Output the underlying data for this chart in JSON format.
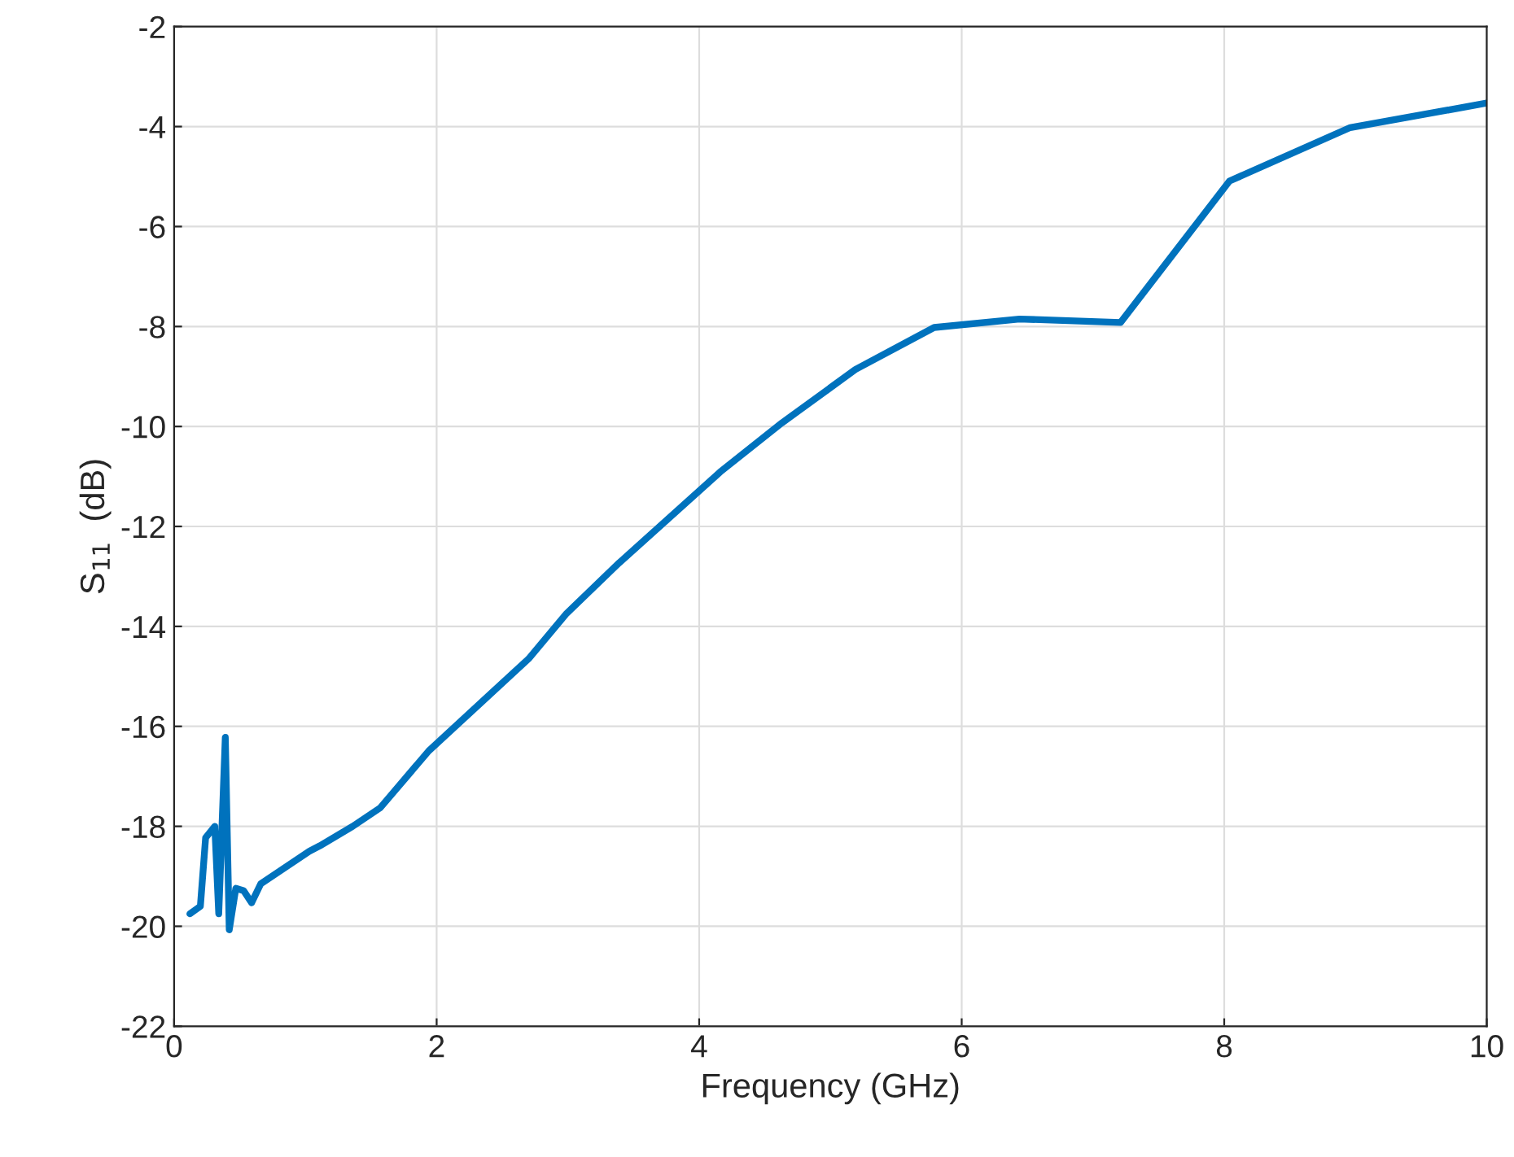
{
  "chart_data": {
    "type": "line",
    "xlabel": "Frequency (GHz)",
    "ylabel": "S$_{11}$  (dB)",
    "series": [
      {
        "color": "#0072bd",
        "x": [
          0.12,
          0.2,
          0.24,
          0.31,
          0.34,
          0.39,
          0.42,
          0.47,
          0.53,
          0.59,
          0.66,
          1.03,
          1.11,
          1.36,
          1.57,
          1.94,
          2.39,
          2.7,
          2.99,
          3.39,
          4.16,
          4.63,
          5.19,
          5.79,
          6.44,
          7.21,
          8.04,
          8.96,
          10
        ],
        "values": [
          -19.75,
          -19.6,
          -18.23,
          -18.0,
          -19.75,
          -16.22,
          -20.07,
          -19.24,
          -19.29,
          -19.53,
          -19.15,
          -18.5,
          -18.39,
          -18.0,
          -17.63,
          -16.49,
          -15.4,
          -14.65,
          -13.74,
          -12.73,
          -10.91,
          -9.93,
          -8.86,
          -8.02,
          -7.85,
          -7.92,
          -5.09,
          -4.02,
          -3.53
        ]
      }
    ],
    "xlim": [
      0,
      10
    ],
    "xticks": [
      0,
      2,
      4,
      6,
      8,
      10
    ],
    "ylim": [
      -22,
      -2
    ],
    "yticks": [
      -22,
      -20,
      -18,
      -16,
      -14,
      -12,
      -10,
      -8,
      -6,
      -4,
      -2
    ],
    "grid": true,
    "line_style": "solid"
  }
}
